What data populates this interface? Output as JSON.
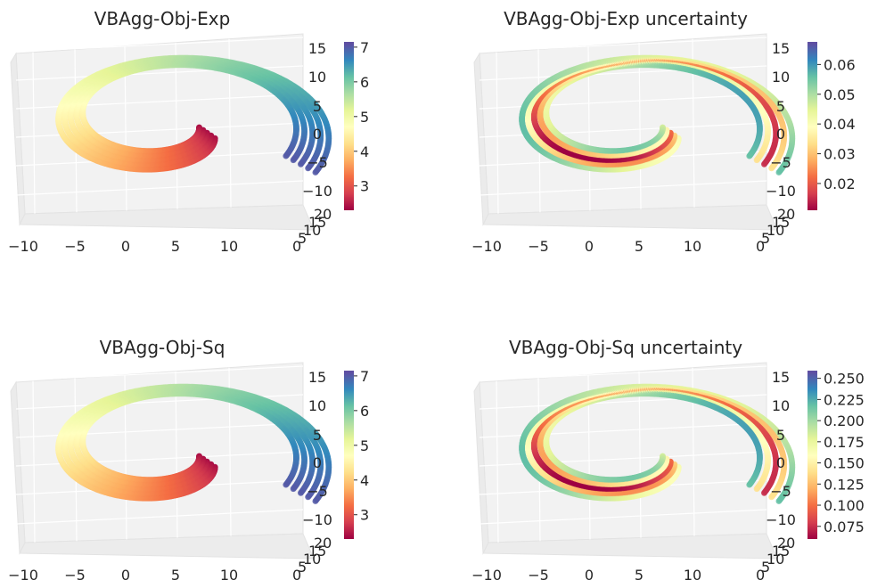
{
  "chart_data": [
    {
      "type": "scatter",
      "title": "VBAgg-Obj-Exp",
      "x_ticks": [
        "−10",
        "−5",
        "0",
        "5",
        "10"
      ],
      "depth_ticks": [
        "0",
        "5",
        "10",
        "15",
        "20"
      ],
      "z_ticks": [
        "15",
        "10",
        "5",
        "0",
        "−5",
        "−10"
      ],
      "colorbar_ticks": [
        "7",
        "6",
        "5",
        "4",
        "3"
      ],
      "colorbar_range": [
        2.3,
        7.1
      ],
      "colormap": "Spectral",
      "color_pattern": "along_spiral",
      "grid": true
    },
    {
      "type": "scatter",
      "title": "VBAgg-Obj-Exp uncertainty",
      "x_ticks": [
        "−10",
        "−5",
        "0",
        "5",
        "10"
      ],
      "depth_ticks": [
        "0",
        "5",
        "10",
        "15",
        "20"
      ],
      "z_ticks": [
        "15",
        "10",
        "5",
        "0",
        "−5",
        "−10"
      ],
      "colorbar_ticks": [
        "0.06",
        "0.05",
        "0.04",
        "0.03",
        "0.02"
      ],
      "colorbar_range": [
        0.011,
        0.067
      ],
      "colormap": "Spectral",
      "color_pattern": "edge_high",
      "grid": true
    },
    {
      "type": "scatter",
      "title": "VBAgg-Obj-Sq",
      "x_ticks": [
        "−10",
        "−5",
        "0",
        "5",
        "10"
      ],
      "depth_ticks": [
        "0",
        "5",
        "10",
        "15",
        "20"
      ],
      "z_ticks": [
        "15",
        "10",
        "5",
        "0",
        "−5",
        "−10"
      ],
      "colorbar_ticks": [
        "7",
        "6",
        "5",
        "4",
        "3"
      ],
      "colorbar_range": [
        2.3,
        7.1
      ],
      "colormap": "Spectral",
      "color_pattern": "along_spiral",
      "grid": true
    },
    {
      "type": "scatter",
      "title": "VBAgg-Obj-Sq uncertainty",
      "x_ticks": [
        "−10",
        "−5",
        "0",
        "5",
        "10"
      ],
      "depth_ticks": [
        "0",
        "5",
        "10",
        "15",
        "20"
      ],
      "z_ticks": [
        "15",
        "10",
        "5",
        "0",
        "−5",
        "−10"
      ],
      "colorbar_ticks": [
        "0.250",
        "0.225",
        "0.200",
        "0.175",
        "0.150",
        "0.125",
        "0.100",
        "0.075"
      ],
      "colorbar_range": [
        0.06,
        0.257
      ],
      "colormap": "Spectral",
      "color_pattern": "edge_high",
      "grid": true
    }
  ]
}
